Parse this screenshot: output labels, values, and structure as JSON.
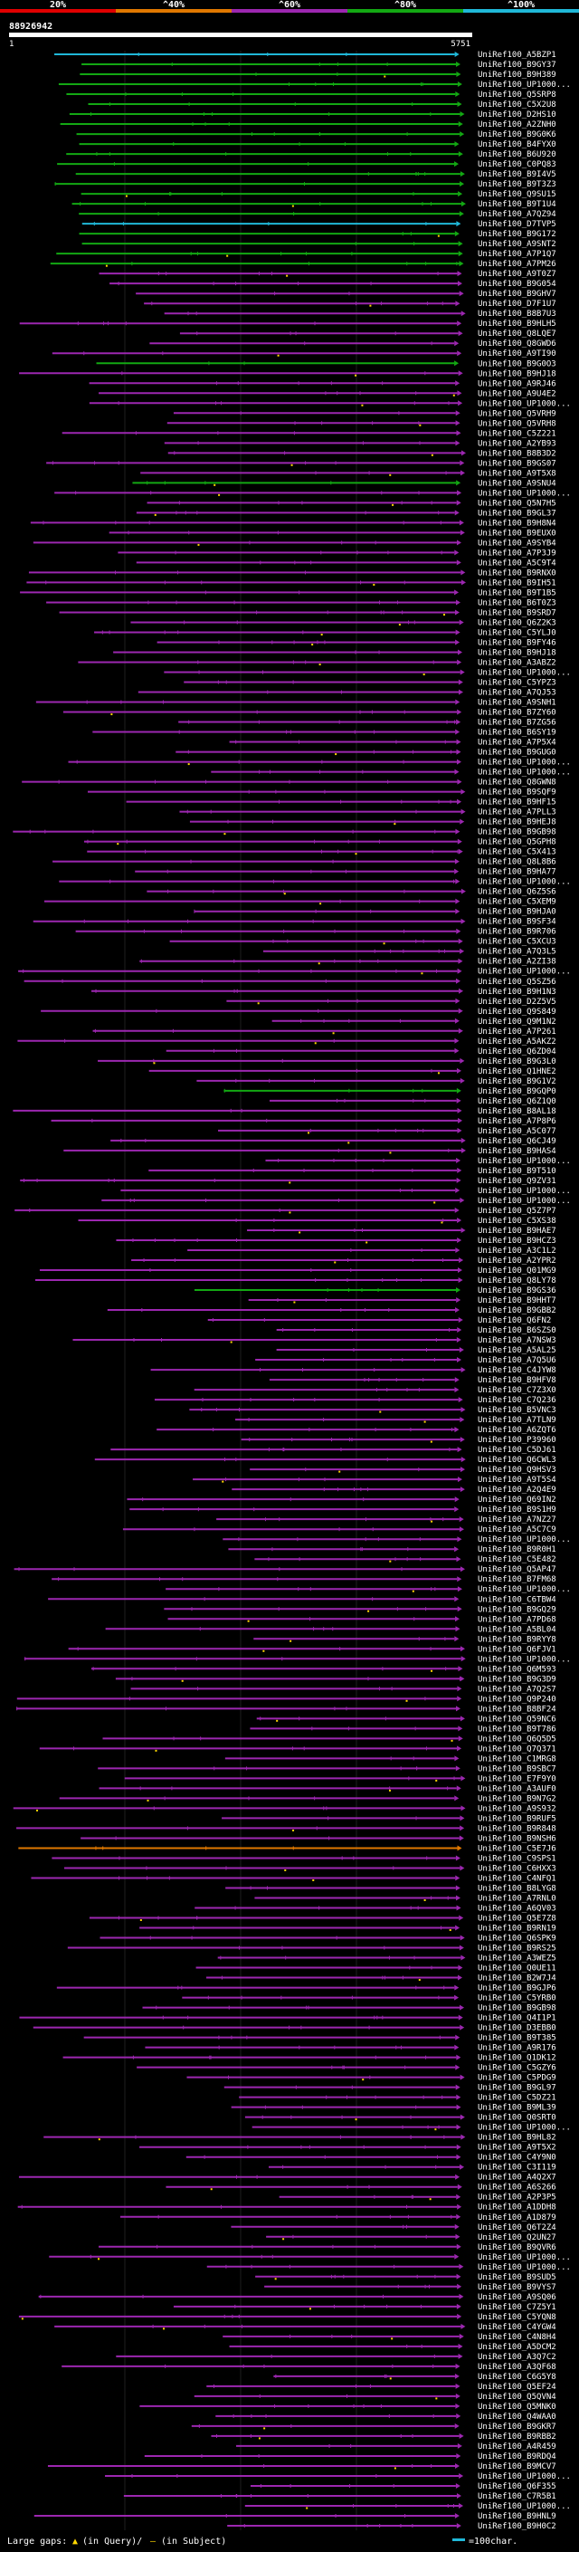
{
  "chart_data": {
    "type": "alignment-overview",
    "title": "88926942",
    "query_range": {
      "start": "1",
      "end": "5751"
    },
    "identity_legend": [
      {
        "label": "20%",
        "color": "#e00000"
      },
      {
        "label": "^40%",
        "color": "#e07800"
      },
      {
        "label": "^60%",
        "color": "#9c27b0"
      },
      {
        "label": "^80%",
        "color": "#13a813"
      },
      {
        "label": "^100%",
        "color": "#20b8d8"
      }
    ],
    "hits": [
      "UniRef100_A5BZP1",
      "UniRef100_B9GY37",
      "UniRef100_B9H389",
      "UniRef100_UP1000...",
      "UniRef100_Q5SRP8",
      "UniRef100_C5X2U8",
      "UniRef100_D2HS10",
      "UniRef100_A2ZNH0",
      "UniRef100_B9G0K6",
      "UniRef100_B4FYX0",
      "UniRef100_B6U920",
      "UniRef100_C0PQ83",
      "UniRef100_B9I4V5",
      "UniRef100_B9T3Z3",
      "UniRef100_Q9SU15",
      "UniRef100_B9T1U4",
      "UniRef100_A7QZ94",
      "UniRef100_D7TVP5",
      "UniRef100_B9G172",
      "UniRef100_A9SNT2",
      "UniRef100_A7P1Q7",
      "UniRef100_A7PM26",
      "UniRef100_A9T0Z7",
      "UniRef100_B9G054",
      "UniRef100_B9GHV7",
      "UniRef100_D7F1U7",
      "UniRef100_B8B7U3",
      "UniRef100_B9HLH5",
      "UniRef100_Q8LQE7",
      "UniRef100_Q8GWD6",
      "UniRef100_A9TI90",
      "UniRef100_B9G0O3",
      "UniRef100_B9HJ18",
      "UniRef100_A9RJ46",
      "UniRef100_A9U4E2",
      "UniRef100_UP1000...",
      "UniRef100_Q5VRH9",
      "UniRef100_Q5VRH8",
      "UniRef100_C5Z221",
      "UniRef100_A2YB93",
      "UniRef100_B8B3D2",
      "UniRef100_B9GS07",
      "UniRef100_A9T5X8",
      "UniRef100_A9SNU4",
      "UniRef100_UP1000...",
      "UniRef100_Q5N7H5",
      "UniRef100_B9GL37",
      "UniRef100_B9H8N4",
      "UniRef100_B9EUX0",
      "UniRef100_A9SYB4",
      "UniRef100_A7P3J9",
      "UniRef100_A5C9T4",
      "UniRef100_B9RNX0",
      "UniRef100_B9IH51",
      "UniRef100_B9T1B5",
      "UniRef100_B6T0Z3",
      "UniRef100_B9SRD7",
      "UniRef100_Q6Z2K3",
      "UniRef100_C5YLJ0",
      "UniRef100_B9FY46",
      "UniRef100_B9HJ18",
      "UniRef100_A3ABZ2",
      "UniRef100_UP1000...",
      "UniRef100_C5YPZ3",
      "UniRef100_A7QJ53",
      "UniRef100_A9SNH1",
      "UniRef100_B7ZY60",
      "UniRef100_B7ZG56",
      "UniRef100_B6SY19",
      "UniRef100_A7P5X4",
      "UniRef100_B9GUG0",
      "UniRef100_UP1000...",
      "UniRef100_UP1000...",
      "UniRef100_Q8GWN8",
      "UniRef100_B9SQF9",
      "UniRef100_B9HF15",
      "UniRef100_A7PLL3",
      "UniRef100_B9HEJ8",
      "UniRef100_B9GB98",
      "UniRef100_Q5GPH8",
      "UniRef100_C5X413",
      "UniRef100_Q8L8B6",
      "UniRef100_B9HA77",
      "UniRef100_UP1000...",
      "UniRef100_Q6Z5S6",
      "UniRef100_C5XEM9",
      "UniRef100_B9HJA0",
      "UniRef100_B9SF34",
      "UniRef100_B9R706",
      "UniRef100_C5XCU3",
      "UniRef100_A7Q3L5",
      "UniRef100_A2ZI38",
      "UniRef100_UP1000...",
      "UniRef100_Q5SZ56",
      "UniRef100_B9H1N3",
      "UniRef100_D2Z5V5",
      "UniRef100_Q9S849",
      "UniRef100_Q9M1N2",
      "UniRef100_A7P261",
      "UniRef100_A5AKZ2",
      "UniRef100_Q6ZD04",
      "UniRef100_B9G3L0",
      "UniRef100_Q1HNE2",
      "UniRef100_B9G1V2",
      "UniRef100_B9GQP0",
      "UniRef100_Q6Z1Q0",
      "UniRef100_B8AL18",
      "UniRef100_A7P8P6",
      "UniRef100_A5C077",
      "UniRef100_Q6CJ49",
      "UniRef100_B9HAS4",
      "UniRef100_UP1000...",
      "UniRef100_B9T510",
      "UniRef100_Q9ZV31",
      "UniRef100_UP1000...",
      "UniRef100_UP1000...",
      "UniRef100_Q5Z7P7",
      "UniRef100_C5XS38",
      "UniRef100_B9HAE7",
      "UniRef100_B9HCZ3",
      "UniRef100_A3C1L2",
      "UniRef100_A2YPR2",
      "UniRef100_Q01MG9",
      "UniRef100_Q8LY78",
      "UniRef100_B9GS36",
      "UniRef100_B9HHT7",
      "UniRef100_B9GBB2",
      "UniRef100_Q6FN2",
      "UniRef100_B6SZS0",
      "UniRef100_A7NSW3",
      "UniRef100_A5AL25",
      "UniRef100_A7Q5U6",
      "UniRef100_C4JYW8",
      "UniRef100_B9HFV8",
      "UniRef100_C7Z3X0",
      "UniRef100_C7Q236",
      "UniRef100_B5VNC3",
      "UniRef100_A7TLN9",
      "UniRef100_A6ZQT6",
      "UniRef100_P39960",
      "UniRef100_C5DJ61",
      "UniRef100_Q6CWL3",
      "UniRef100_Q9HSV3",
      "UniRef100_A9T5S4",
      "UniRef100_A2Q4E9",
      "UniRef100_Q69IN2",
      "UniRef100_B9S1H9",
      "UniRef100_A7NZ27",
      "UniRef100_A5C7C9",
      "UniRef100_UP1000...",
      "UniRef100_B9R0H1",
      "UniRef100_C5E482",
      "UniRef100_Q5AP47",
      "UniRef100_B7FM68",
      "UniRef100_UP1000...",
      "UniRef100_C6TBW4",
      "UniRef100_B9GQ29",
      "UniRef100_A7PD68",
      "UniRef100_A5BL04",
      "UniRef100_B9RYY8",
      "UniRef100_Q6FJV1",
      "UniRef100_UP1000...",
      "UniRef100_Q6M593",
      "UniRef100_B9G3D9",
      "UniRef100_A7Q2S7",
      "UniRef100_Q9P240",
      "UniRef100_B8BF24",
      "UniRef100_Q59NC6",
      "UniRef100_B9T786",
      "UniRef100_Q6Q5D5",
      "UniRef100_Q7Q371",
      "UniRef100_C1MRG8",
      "UniRef100_B9SBC7",
      "UniRef100_E7F9Y0",
      "UniRef100_A3AUF0",
      "UniRef100_B9N7G2",
      "UniRef100_A9S932",
      "UniRef100_B9RUF5",
      "UniRef100_B9R848",
      "UniRef100_B9NSH6",
      "UniRef100_C5E7J6",
      "UniRef100_C9SPS1",
      "UniRef100_C6HXX3",
      "UniRef100_C4NFQ1",
      "UniRef100_B8LYG8",
      "UniRef100_A7RNL0",
      "UniRef100_A6QV03",
      "UniRef100_Q5E7Z8",
      "UniRef100_B9RN19",
      "UniRef100_Q6SPK9",
      "UniRef100_B9RS25",
      "UniRef100_A3WEZ5",
      "UniRef100_Q0UE11",
      "UniRef100_B2W7J4",
      "UniRef100_B9GJP6",
      "UniRef100_C5YRB0",
      "UniRef100_B9GB98",
      "UniRef100_Q4I1P1",
      "UniRef100_D3EBB0",
      "UniRef100_B9T385",
      "UniRef100_A9R176",
      "UniRef100_Q1DK12",
      "UniRef100_C5GZY6",
      "UniRef100_C5PDG9",
      "UniRef100_B9GL97",
      "UniRef100_C5DZ21",
      "UniRef100_B9ML39",
      "UniRef100_Q0SRT0",
      "UniRef100_UP1000...",
      "UniRef100_B9HL82",
      "UniRef100_A9T5X2",
      "UniRef100_C4Y9N0",
      "UniRef100_C3I119",
      "UniRef100_A4Q2X7",
      "UniRef100_A6S266",
      "UniRef100_A2P3P5",
      "UniRef100_A1DDH8",
      "UniRef100_A1D879",
      "UniRef100_Q6T2Z4",
      "UniRef100_Q2UN27",
      "UniRef100_B9QVR6",
      "UniRef100_UP1000...",
      "UniRef100_UP1000...",
      "UniRef100_B9SUD5",
      "UniRef100_B9VYS7",
      "UniRef100_A9SQ06",
      "UniRef100_C7Z5Y1",
      "UniRef100_C5YQN8",
      "UniRef100_C4YGW4",
      "UniRef100_C4N8H4",
      "UniRef100_A5DCM2",
      "UniRef100_A3Q7C2",
      "UniRef100_A3QF68",
      "UniRef100_C6G5Y8",
      "UniRef100_Q5EF24",
      "UniRef100_Q5QVN4",
      "UniRef100_Q5MNK0",
      "UniRef100_Q4WAA0",
      "UniRef100_B9GKR7",
      "UniRef100_B9RBB2",
      "UniRef100_A4R459",
      "UniRef100_B9RDQ4",
      "UniRef100_B9MCV7",
      "UniRef100_UP1000...",
      "UniRef100_Q6F355",
      "UniRef100_C7R5B1",
      "UniRef100_UP1000...",
      "UniRef100_B9HNL9",
      "UniRef100_B9H0C2"
    ],
    "footer": {
      "prefix": "Large gaps:",
      "query_marker": "▲",
      "query_text": "(in Query)/",
      "subject_marker": "—",
      "subject_text": "(in Subject)",
      "scale_text": "=100char."
    }
  }
}
